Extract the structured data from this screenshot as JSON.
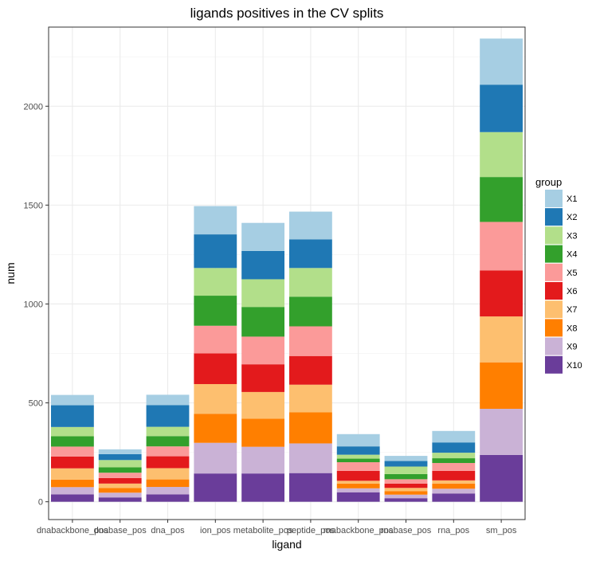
{
  "chart_data": {
    "type": "bar",
    "stacked": true,
    "title": "ligands positives in the CV splits",
    "xlabel": "ligand",
    "ylabel": "num",
    "categories": [
      "dnabackbone_pos",
      "dnabase_pos",
      "dna_pos",
      "ion_pos",
      "metabolite_pos",
      "peptide_pos",
      "rnabackbone_pos",
      "rnabase_pos",
      "rna_pos",
      "sm_pos"
    ],
    "ylim": [
      -90,
      2400
    ],
    "yticks": [
      0,
      500,
      1000,
      1500,
      2000
    ],
    "grid": true,
    "legend": {
      "title": "group",
      "position": "right"
    },
    "series": [
      {
        "name": "X10",
        "color": "#6A3D9A",
        "values": [
          37,
          22,
          37,
          143,
          143,
          145,
          48,
          18,
          42,
          237
        ]
      },
      {
        "name": "X9",
        "color": "#CAB2D6",
        "values": [
          37,
          24,
          38,
          155,
          135,
          150,
          20,
          18,
          24,
          233
        ]
      },
      {
        "name": "X8",
        "color": "#FF7F00",
        "values": [
          38,
          24,
          38,
          147,
          142,
          157,
          24,
          18,
          26,
          235
        ]
      },
      {
        "name": "X7",
        "color": "#FDBF6F",
        "values": [
          57,
          22,
          57,
          150,
          135,
          140,
          14,
          16,
          16,
          232
        ]
      },
      {
        "name": "X6",
        "color": "#E31A1C",
        "values": [
          60,
          28,
          60,
          155,
          140,
          145,
          50,
          22,
          48,
          233
        ]
      },
      {
        "name": "X5",
        "color": "#FB9A99",
        "values": [
          50,
          27,
          50,
          140,
          140,
          150,
          44,
          22,
          40,
          245
        ]
      },
      {
        "name": "X4",
        "color": "#33A02C",
        "values": [
          52,
          27,
          52,
          152,
          150,
          150,
          18,
          26,
          24,
          227
        ]
      },
      {
        "name": "X3",
        "color": "#B2DF8A",
        "values": [
          47,
          37,
          47,
          140,
          140,
          145,
          20,
          38,
          28,
          227
        ]
      },
      {
        "name": "X2",
        "color": "#1F78B4",
        "values": [
          110,
          30,
          110,
          170,
          143,
          145,
          42,
          28,
          52,
          240
        ]
      },
      {
        "name": "X1",
        "color": "#A6CEE3",
        "values": [
          52,
          24,
          52,
          143,
          142,
          140,
          62,
          26,
          58,
          233
        ]
      }
    ]
  }
}
